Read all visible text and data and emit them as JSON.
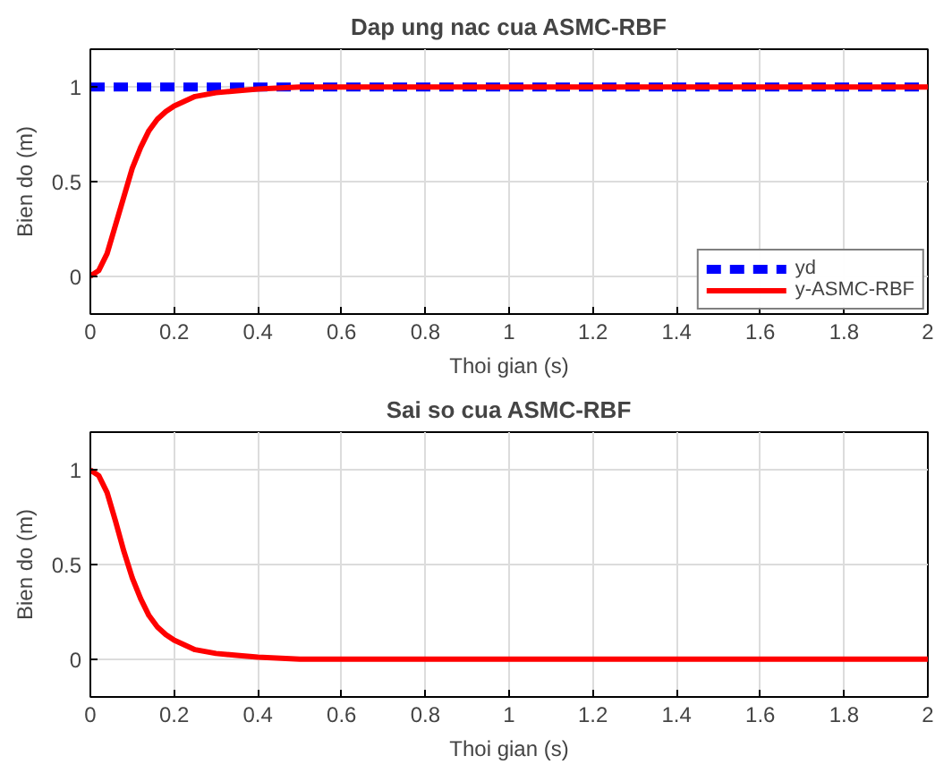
{
  "chart_data": [
    {
      "type": "line",
      "title": "Dap ung nac cua ASMC-RBF",
      "xlabel": "Thoi gian (s)",
      "ylabel": "Bien do (m)",
      "xlim": [
        0,
        2
      ],
      "xticks": [
        0,
        0.2,
        0.4,
        0.6,
        0.8,
        1,
        1.2,
        1.4,
        1.6,
        1.8,
        2
      ],
      "ylim": [
        -0.2,
        1.2
      ],
      "yticks": [
        0,
        0.5,
        1
      ],
      "grid": true,
      "legend": "bottom right",
      "series": [
        {
          "name": "yd",
          "color": "#0000ff",
          "line_style": "dashed",
          "x": [
            0,
            2
          ],
          "values": [
            1,
            1
          ]
        },
        {
          "name": "y-ASMC-RBF",
          "color": "#ff0000",
          "line_style": "solid",
          "x": [
            0,
            0.02,
            0.04,
            0.06,
            0.08,
            0.1,
            0.12,
            0.14,
            0.16,
            0.18,
            0.2,
            0.25,
            0.3,
            0.35,
            0.4,
            0.5,
            2
          ],
          "values": [
            0,
            0.03,
            0.12,
            0.27,
            0.42,
            0.57,
            0.68,
            0.77,
            0.83,
            0.87,
            0.9,
            0.95,
            0.97,
            0.98,
            0.99,
            1,
            1
          ]
        }
      ]
    },
    {
      "type": "line",
      "title": "Sai so cua ASMC-RBF",
      "xlabel": "Thoi gian (s)",
      "ylabel": "Bien do (m)",
      "xlim": [
        0,
        2
      ],
      "xticks": [
        0,
        0.2,
        0.4,
        0.6,
        0.8,
        1,
        1.2,
        1.4,
        1.6,
        1.8,
        2
      ],
      "ylim": [
        -0.2,
        1.2
      ],
      "yticks": [
        0,
        0.5,
        1
      ],
      "grid": true,
      "series": [
        {
          "color": "#ff0000",
          "line_style": "solid",
          "x": [
            0,
            0.02,
            0.04,
            0.06,
            0.08,
            0.1,
            0.12,
            0.14,
            0.16,
            0.18,
            0.2,
            0.25,
            0.3,
            0.35,
            0.4,
            0.5,
            2
          ],
          "values": [
            1,
            0.97,
            0.88,
            0.73,
            0.57,
            0.43,
            0.32,
            0.23,
            0.17,
            0.13,
            0.1,
            0.05,
            0.03,
            0.02,
            0.01,
            0,
            0
          ]
        }
      ]
    }
  ]
}
